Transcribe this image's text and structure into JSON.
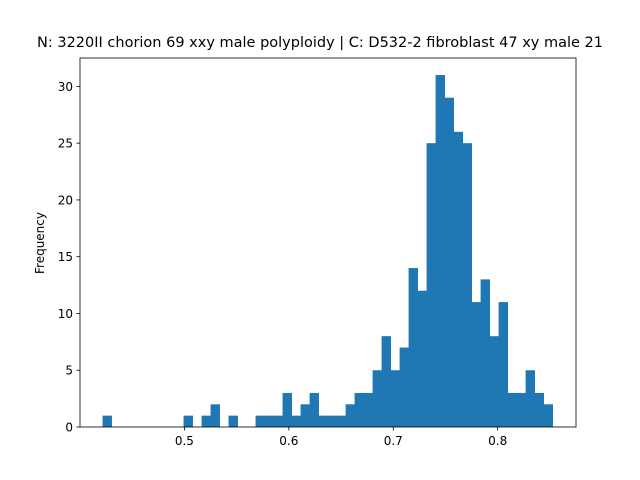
{
  "chart_data": {
    "type": "bar",
    "title": "N: 3220II chorion 69 xxy male polyploidy | C: D532-2 fibroblast 47 xy male 21",
    "xlabel": "",
    "ylabel": "Frequency",
    "xlim": [
      0.4,
      0.875
    ],
    "ylim": [
      0,
      32.5
    ],
    "xticks": [
      0.5,
      0.6,
      0.7,
      0.8
    ],
    "xtick_labels": [
      "0.5",
      "0.6",
      "0.7",
      "0.8"
    ],
    "yticks": [
      0,
      5,
      10,
      15,
      20,
      25,
      30
    ],
    "ytick_labels": [
      "0",
      "5",
      "10",
      "15",
      "20",
      "25",
      "30"
    ],
    "grid": false,
    "color": "#1f77b4",
    "bin_start": 0.4216,
    "bin_width": 0.00862,
    "values": [
      1,
      0,
      0,
      0,
      0,
      0,
      0,
      0,
      0,
      1,
      0,
      1,
      2,
      0,
      1,
      0,
      0,
      1,
      1,
      1,
      3,
      1,
      2,
      3,
      1,
      1,
      1,
      2,
      3,
      3,
      5,
      8,
      5,
      7,
      14,
      12,
      25,
      31,
      29,
      26,
      25,
      11,
      13,
      8,
      11,
      3,
      3,
      5,
      3,
      2
    ]
  }
}
